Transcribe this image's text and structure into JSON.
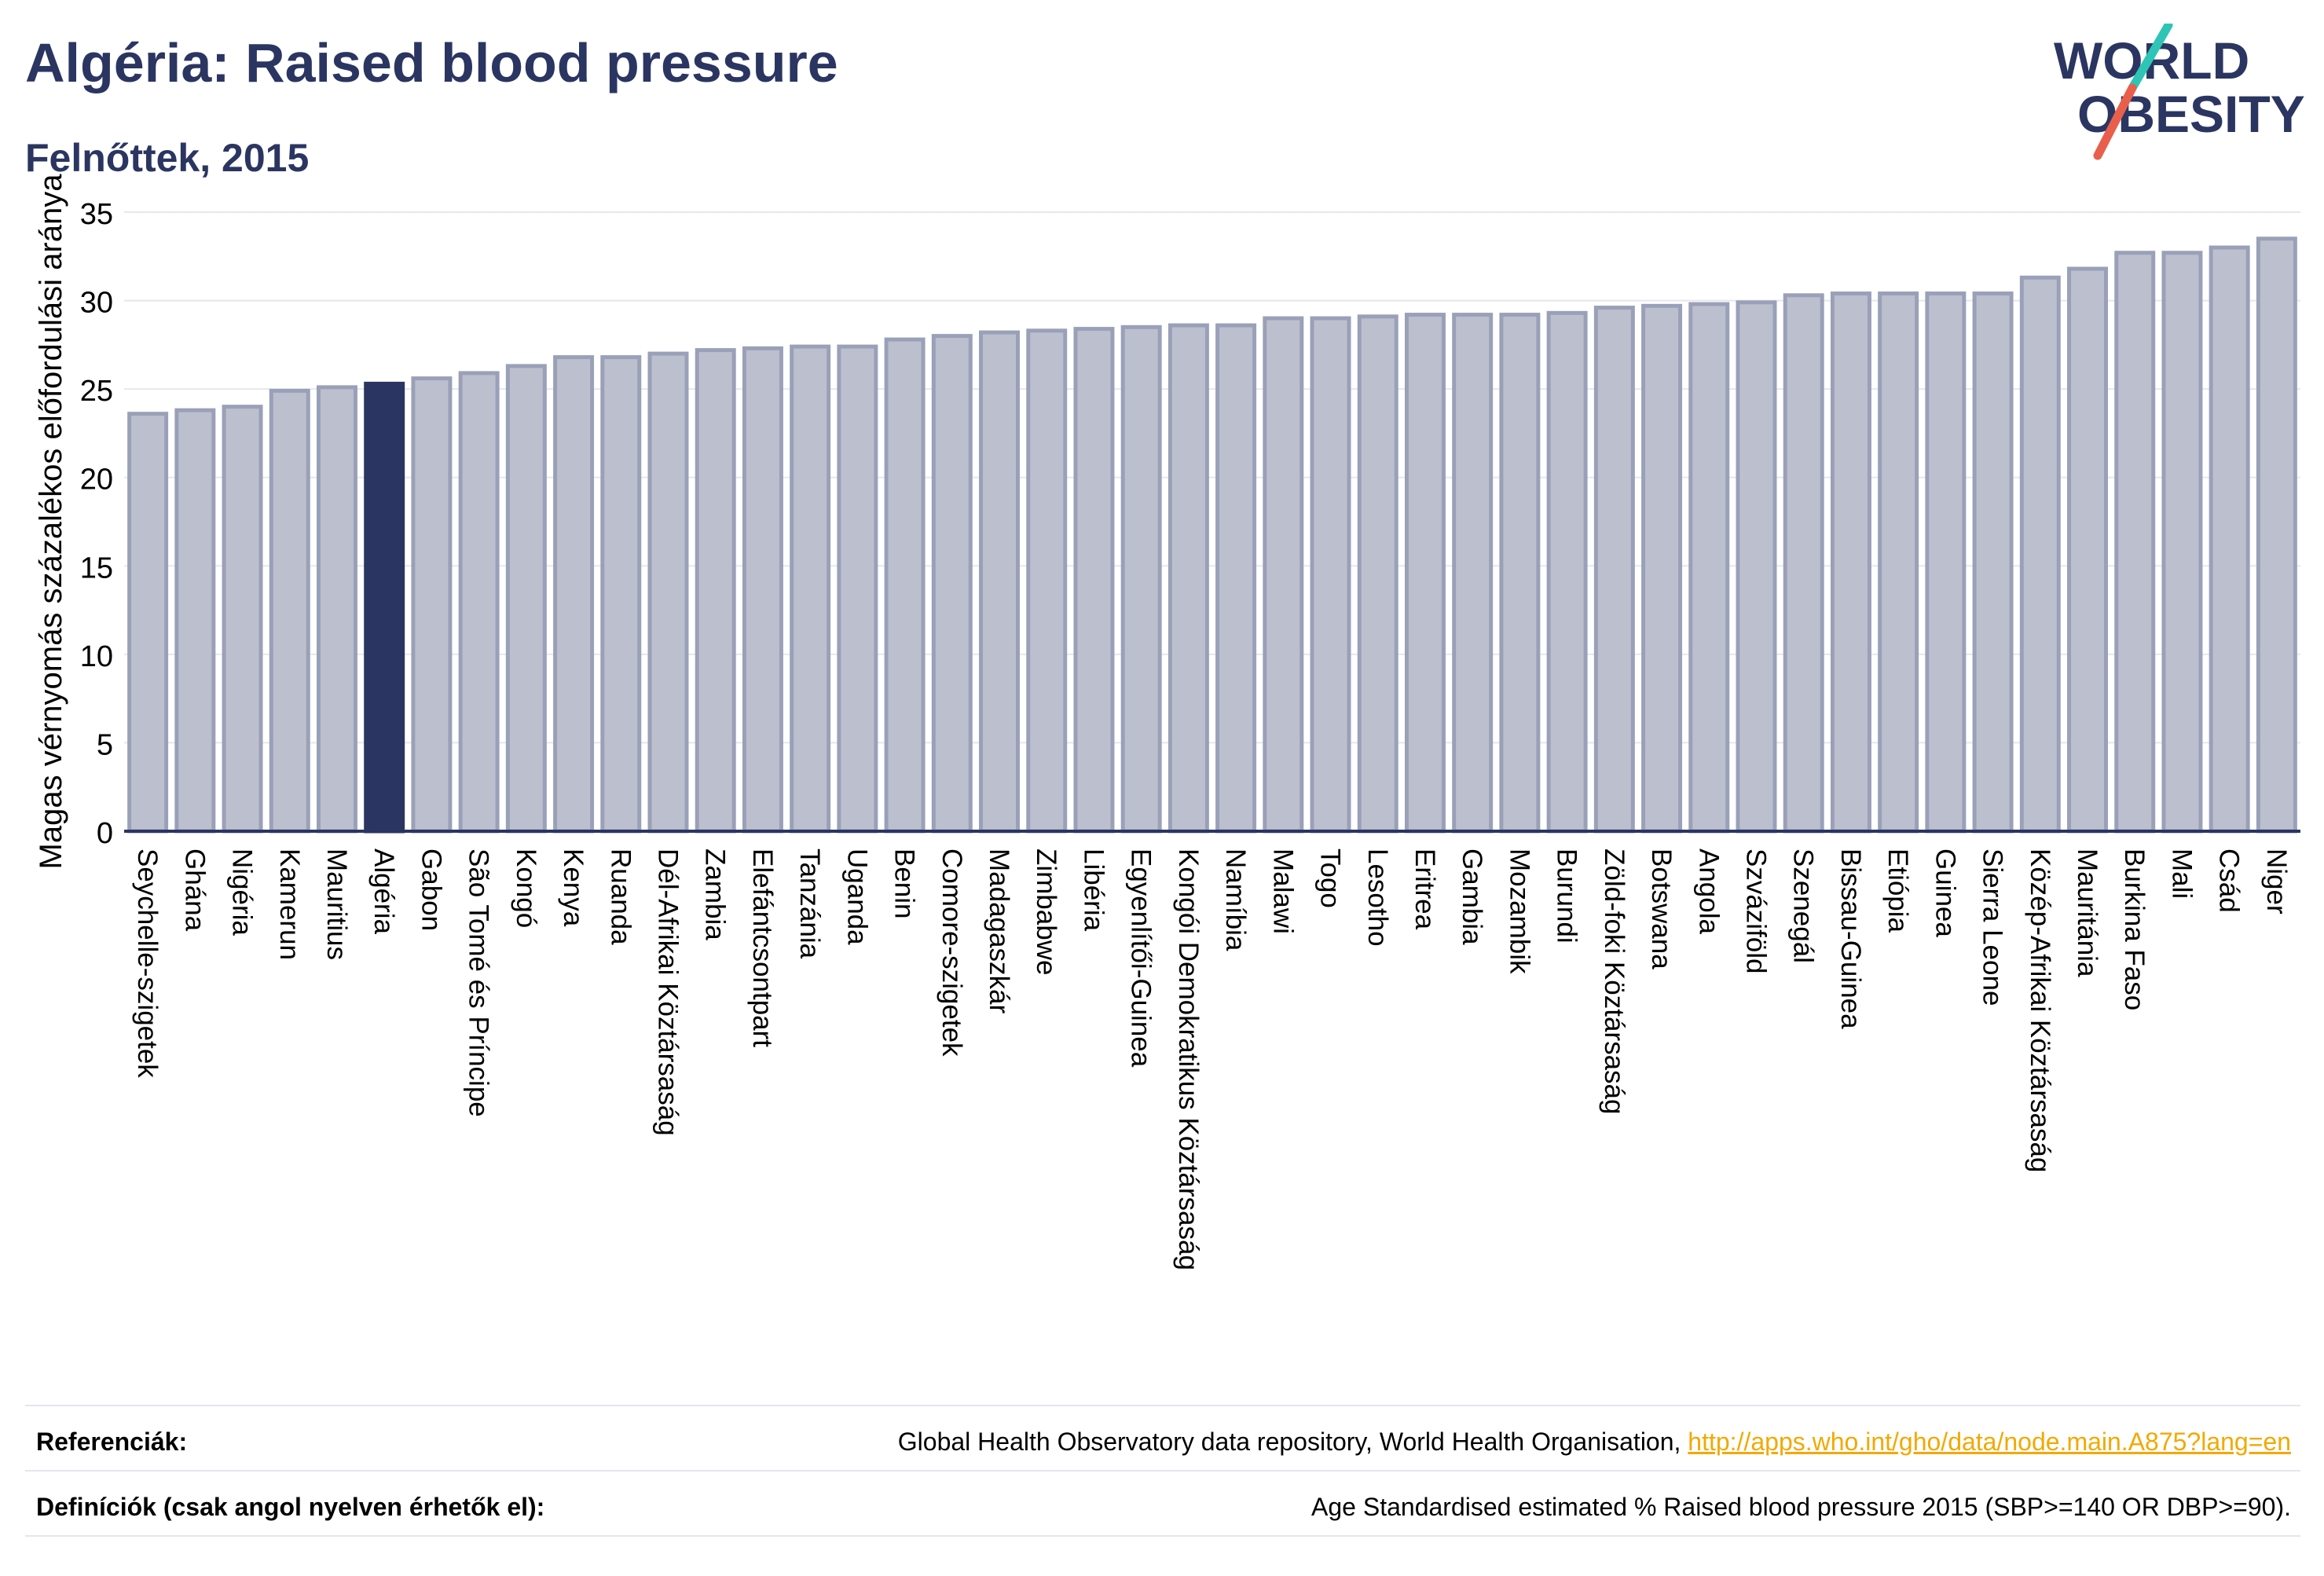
{
  "header": {
    "title": "Algéria: Raised blood pressure",
    "subtitle": "Felnőttek, 2015"
  },
  "logo": {
    "line1": "WORLD",
    "line2": "OBESITY",
    "colors": {
      "text": "#2b3561",
      "teal": "#2ec4b6",
      "coral": "#e8604c"
    }
  },
  "footer": {
    "references_label": "Referenciák:",
    "references_text": "Global Health Observatory data repository, World Health Organisation, ",
    "references_link": "http://apps.who.int/gho/data/node.main.A875?lang=en",
    "definitions_label": "Definíciók (csak angol nyelven érhetők el):",
    "definitions_text": "Age Standardised estimated % Raised blood pressure 2015 (SBP>=140 OR DBP>=90)."
  },
  "chart_data": {
    "type": "bar",
    "title": "Algéria: Raised blood pressure",
    "subtitle": "Felnőttek, 2015",
    "xlabel": "",
    "ylabel": "Magas vérnyomás százalékos előfordulási aránya",
    "ylim": [
      0,
      35
    ],
    "yticks": [
      0,
      5,
      10,
      15,
      20,
      25,
      30,
      35
    ],
    "grid": true,
    "highlight": "Algéria",
    "colors": {
      "bar": "#bcc0ce",
      "bar_edge": "#9aa0b8",
      "highlight": "#2b3561",
      "grid": "#e6e8ee",
      "axis": "#2b3561"
    },
    "categories": [
      "Seychelle-szigetek",
      "Ghána",
      "Nigéria",
      "Kamerun",
      "Mauritius",
      "Algéria",
      "Gabon",
      "São Tomé és Príncipe",
      "Kongó",
      "Kenya",
      "Ruanda",
      "Dél-Afrikai Köztársaság",
      "Zambia",
      "Elefántcsontpart",
      "Tanzánia",
      "Uganda",
      "Benin",
      "Comore-szigetek",
      "Madagaszkár",
      "Zimbabwe",
      "Libéria",
      "Egyenlítői-Guinea",
      "Kongói Demokratikus Köztársaság",
      "Namíbia",
      "Malawi",
      "Togo",
      "Lesotho",
      "Eritrea",
      "Gambia",
      "Mozambik",
      "Burundi",
      "Zöld-foki Köztársaság",
      "Botswana",
      "Angola",
      "Szváziföld",
      "Szenegál",
      "Bissau-Guinea",
      "Etiópia",
      "Guinea",
      "Sierra Leone",
      "Közép-Afrikai Köztársaság",
      "Mauritánia",
      "Burkina Faso",
      "Mali",
      "Csád",
      "Niger"
    ],
    "values": [
      23.6,
      23.8,
      24.0,
      24.9,
      25.1,
      25.3,
      25.6,
      25.9,
      26.3,
      26.8,
      26.8,
      27.0,
      27.2,
      27.3,
      27.4,
      27.4,
      27.8,
      28.0,
      28.2,
      28.3,
      28.4,
      28.5,
      28.6,
      28.6,
      29.0,
      29.0,
      29.1,
      29.2,
      29.2,
      29.2,
      29.3,
      29.6,
      29.7,
      29.8,
      29.9,
      30.3,
      30.4,
      30.4,
      30.4,
      30.4,
      31.3,
      31.8,
      32.7,
      32.7,
      33.0,
      33.5
    ]
  }
}
